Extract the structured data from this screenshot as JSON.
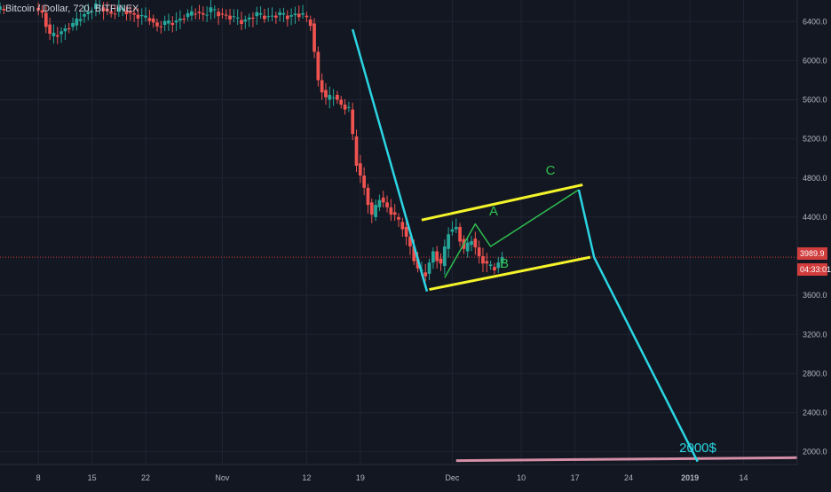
{
  "header": {
    "title": "Bitcoin / Dollar, 720, BITFINEX"
  },
  "price_axis": {
    "ticks": [
      "6400.0",
      "6000.0",
      "5600.0",
      "5200.0",
      "4800.0",
      "4400.0",
      "3600.0",
      "3200.0",
      "2800.0",
      "2400.0",
      "2000.0"
    ],
    "tick_values": [
      6400,
      6000,
      5600,
      5200,
      4800,
      4400,
      3600,
      3200,
      2800,
      2400,
      2000
    ],
    "last_price_label": "3989.9",
    "last_price": 3989.9,
    "countdown_label": "04:33:01"
  },
  "time_axis": {
    "labels": [
      "8",
      "15",
      "22",
      "Nov",
      "12",
      "19",
      "Dec",
      "10",
      "17",
      "24",
      "2019",
      "14"
    ],
    "label_days": [
      0,
      7,
      14,
      24,
      35,
      42,
      54,
      63,
      70,
      77,
      85,
      92
    ],
    "bold_labels": [
      "2019"
    ]
  },
  "annotations": {
    "label_a": "A",
    "label_b": "B",
    "label_c": "C",
    "target_label": "2000$"
  },
  "colors": {
    "background": "#131722",
    "grid": "#1f2433",
    "candle_up": "#26a69a",
    "candle_down": "#ef5350",
    "trend_line": "#2bd5e3",
    "channel": "#f4f42a",
    "wave": "#2fbf4f",
    "bottom_line": "#d58fa6",
    "axis_text": "#b2b5be",
    "last_price_line": "#d13c3c"
  },
  "chart_data": {
    "type": "candlestick",
    "ylim": [
      1870,
      6620
    ],
    "xlim_days": [
      -5,
      99
    ],
    "grid": true,
    "drawings": {
      "trend_down_1": [
        [
          41,
          6320
        ],
        [
          50.7,
          3640
        ]
      ],
      "channel_upper": [
        [
          50,
          4370
        ],
        [
          71,
          4730
        ]
      ],
      "channel_lower": [
        [
          51,
          3660
        ],
        [
          72,
          3990
        ]
      ],
      "wave_abc": [
        [
          53,
          3780
        ],
        [
          57,
          4330
        ],
        [
          59,
          4100
        ],
        [
          70.5,
          4680
        ]
      ],
      "trend_down_2": [
        [
          70.5,
          4680
        ],
        [
          72.5,
          3990
        ],
        [
          86,
          1900
        ]
      ],
      "target_line": [
        [
          54.5,
          1910
        ],
        [
          99,
          1940
        ]
      ]
    }
  }
}
